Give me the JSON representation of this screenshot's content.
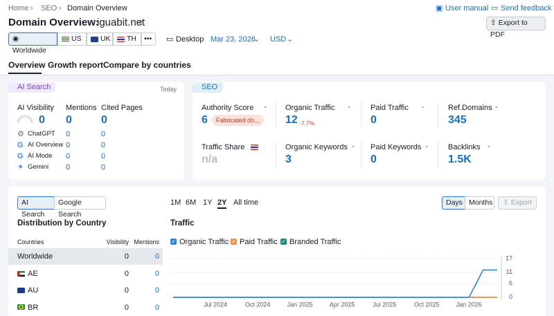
{
  "breadcrumb": [
    "Home",
    "SEO",
    "Domain Overview"
  ],
  "header": {
    "title": "Domain Overview:",
    "domain": "iguabit.net",
    "links": [
      "User manual",
      "Send feedback"
    ],
    "export": "Export to PDF"
  },
  "filters": {
    "regions": [
      "Worldwide",
      "US",
      "UK",
      "TH"
    ],
    "device": "Desktop",
    "date": "Mar 23, 2026",
    "currency": "USD"
  },
  "tabs": [
    "Overview",
    "Growth report",
    "Compare by countries"
  ],
  "ai_search": {
    "label": "AI Search",
    "date": "Today",
    "metrics": [
      {
        "label": "AI Visibility",
        "value": 0
      },
      {
        "label": "Mentions",
        "value": 0
      },
      {
        "label": "Cited Pages",
        "value": 0
      }
    ],
    "rows": [
      {
        "name": "ChatGPT",
        "mentions": 0,
        "cited": 0
      },
      {
        "name": "AI Overview",
        "mentions": 0,
        "cited": 0
      },
      {
        "name": "AI Mode",
        "mentions": 0,
        "cited": 0
      },
      {
        "name": "Gemini",
        "mentions": 0,
        "cited": 0
      }
    ]
  },
  "seo": {
    "label": "SEO",
    "metrics": [
      {
        "label": "Authority Score",
        "value": 6,
        "badge": "Fabricated do..."
      },
      {
        "label": "Organic Traffic",
        "value": 12,
        "change": "-7.7%"
      },
      {
        "label": "Paid Traffic",
        "value": 0
      },
      {
        "label": "Ref.Domains",
        "value": 345
      },
      {
        "label": "Traffic Share",
        "value": "n/a"
      },
      {
        "label": "Organic Keywords",
        "value": 3
      },
      {
        "label": "Paid Keywords",
        "value": 0
      },
      {
        "label": "Backlinks",
        "value": "1.5K"
      }
    ]
  },
  "panel": {
    "sources": [
      "AI Search",
      "Google Search"
    ],
    "periods": [
      "1M",
      "6M",
      "1Y",
      "2Y",
      "All time"
    ],
    "granularity": [
      "Days",
      "Months"
    ],
    "export": "Export"
  },
  "distribution": {
    "title": "Distribution by Country",
    "columns": [
      "Countries",
      "Visibility",
      "Mentions"
    ],
    "rows": [
      [
        "Worldwide",
        0,
        0
      ],
      [
        "AE",
        0,
        0
      ],
      [
        "AU",
        0,
        0
      ],
      [
        "BR",
        0,
        0
      ]
    ]
  },
  "traffic": {
    "title": "Traffic",
    "type": "line",
    "categories": [
      null,
      null,
      null,
      "Jul 2024",
      null,
      null,
      "Oct 2024",
      null,
      null,
      "Jan 2025",
      null,
      null,
      "Apr 2025",
      null,
      null,
      "Jul 2025",
      null,
      null,
      "Oct 2025",
      null,
      null,
      "Jan 2026",
      null,
      null
    ],
    "series": [
      {
        "name": "Organic Traffic",
        "color": "#2e86de",
        "values": [
          0,
          0,
          0,
          0,
          0,
          0,
          0,
          0,
          0,
          0,
          0,
          0,
          0,
          0,
          0,
          0,
          0,
          0,
          0,
          0,
          0,
          0,
          12,
          12
        ]
      },
      {
        "name": "Paid Traffic",
        "color": "#f0954a",
        "values": [
          0,
          0,
          0,
          0,
          0,
          0,
          0,
          0,
          0,
          0,
          0,
          0,
          0,
          0,
          0,
          0,
          0,
          0,
          0,
          0,
          0,
          0,
          0,
          0
        ]
      },
      {
        "name": "Branded Traffic",
        "color": "#1b8a7a",
        "values": [
          0,
          0,
          0,
          0,
          0,
          0,
          0,
          0,
          0,
          0,
          0,
          0,
          0,
          0,
          0,
          0,
          0,
          0,
          0,
          0,
          0,
          0,
          0,
          0
        ]
      }
    ],
    "ylim": [
      0,
      17
    ],
    "yticks": [
      0,
      6,
      11,
      17
    ],
    "grid": true
  }
}
